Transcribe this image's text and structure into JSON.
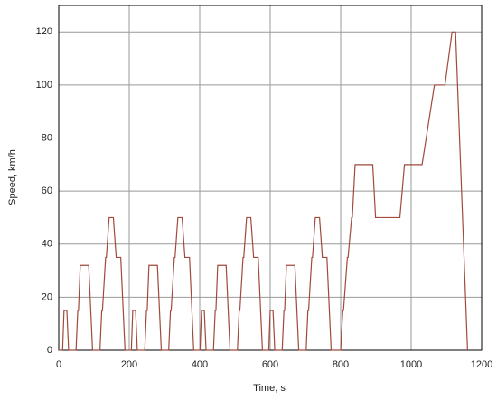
{
  "chart_data": {
    "type": "line",
    "x_label": "Time, s",
    "y_label": "Speed, km/h",
    "x": [
      0,
      11,
      15,
      23,
      28,
      49,
      54,
      56,
      61,
      85,
      96,
      117,
      122,
      124,
      133,
      135,
      143,
      155,
      163,
      176,
      188,
      195,
      206,
      210,
      218,
      223,
      244,
      249,
      251,
      256,
      280,
      291,
      312,
      317,
      319,
      328,
      330,
      338,
      350,
      358,
      371,
      383,
      390,
      401,
      405,
      413,
      418,
      439,
      444,
      446,
      451,
      475,
      486,
      507,
      512,
      514,
      523,
      525,
      533,
      545,
      553,
      566,
      578,
      585,
      596,
      600,
      608,
      613,
      634,
      639,
      641,
      646,
      670,
      681,
      702,
      707,
      709,
      718,
      720,
      728,
      740,
      748,
      761,
      773,
      780,
      800,
      806,
      808,
      819,
      821,
      831,
      833,
      841,
      891,
      899,
      968,
      981,
      1031,
      1066,
      1096,
      1116,
      1126,
      1160
    ],
    "series": [
      {
        "color": "#a04a3c",
        "values": [
          0,
          0,
          15,
          15,
          0,
          0,
          15,
          15,
          32,
          32,
          0,
          0,
          15,
          15,
          35,
          35,
          50,
          50,
          35,
          35,
          0,
          0,
          0,
          15,
          15,
          0,
          0,
          15,
          15,
          32,
          32,
          0,
          0,
          15,
          15,
          35,
          35,
          50,
          50,
          35,
          35,
          0,
          0,
          0,
          15,
          15,
          0,
          0,
          15,
          15,
          32,
          32,
          0,
          0,
          15,
          15,
          35,
          35,
          50,
          50,
          35,
          35,
          0,
          0,
          0,
          15,
          15,
          0,
          0,
          15,
          15,
          32,
          32,
          0,
          0,
          15,
          15,
          35,
          35,
          50,
          50,
          35,
          35,
          0,
          0,
          0,
          15,
          15,
          35,
          35,
          50,
          50,
          70,
          70,
          50,
          50,
          70,
          70,
          100,
          100,
          120,
          120,
          0
        ]
      }
    ],
    "xlim": [
      0,
      1200
    ],
    "ylim": [
      0,
      130
    ],
    "xticks": [
      0,
      200,
      400,
      600,
      800,
      1000,
      1200
    ],
    "yticks": [
      0,
      20,
      40,
      60,
      80,
      100,
      120
    ],
    "grid": true
  }
}
